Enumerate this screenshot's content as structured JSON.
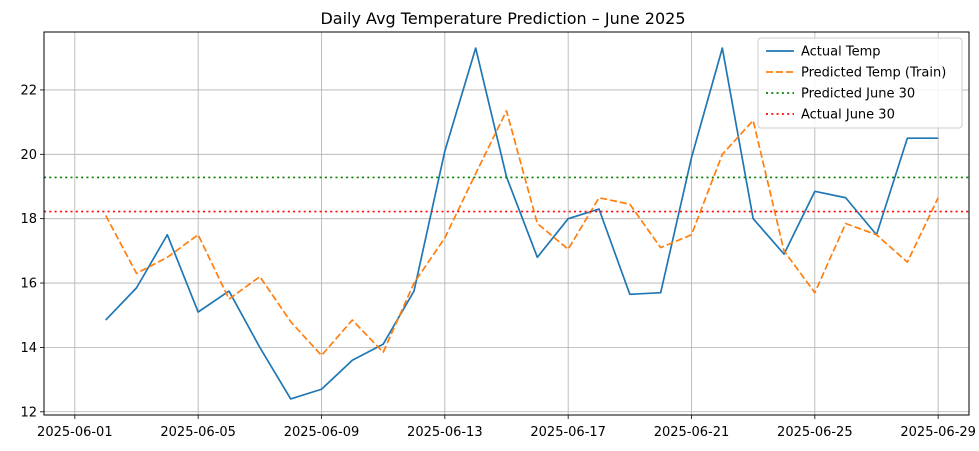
{
  "chart_data": {
    "type": "line",
    "title": "Daily Avg Temperature Prediction – June 2025",
    "xlabel": "",
    "ylabel": "",
    "xlim": [
      "2025-05-31",
      "2025-06-30"
    ],
    "ylim": [
      11.9,
      23.8
    ],
    "x_ticks": [
      "2025-06-01",
      "2025-06-05",
      "2025-06-09",
      "2025-06-13",
      "2025-06-17",
      "2025-06-21",
      "2025-06-25",
      "2025-06-29"
    ],
    "y_ticks": [
      12,
      14,
      16,
      18,
      20,
      22
    ],
    "grid": true,
    "legend_position": "top-right",
    "dates": [
      "2025-06-02",
      "2025-06-03",
      "2025-06-04",
      "2025-06-05",
      "2025-06-06",
      "2025-06-07",
      "2025-06-08",
      "2025-06-09",
      "2025-06-10",
      "2025-06-11",
      "2025-06-12",
      "2025-06-13",
      "2025-06-14",
      "2025-06-15",
      "2025-06-16",
      "2025-06-17",
      "2025-06-18",
      "2025-06-19",
      "2025-06-20",
      "2025-06-21",
      "2025-06-22",
      "2025-06-23",
      "2025-06-24",
      "2025-06-25",
      "2025-06-26",
      "2025-06-27",
      "2025-06-28",
      "2025-06-29"
    ],
    "series": [
      {
        "name": "Actual Temp",
        "color": "#1f77b4",
        "style": "solid",
        "values": [
          14.85,
          15.85,
          17.5,
          15.1,
          15.75,
          14.0,
          12.4,
          12.7,
          13.6,
          14.1,
          15.75,
          20.1,
          23.3,
          19.3,
          16.8,
          18.0,
          18.3,
          15.65,
          15.7,
          19.9,
          23.3,
          18.0,
          16.9,
          18.85,
          18.65,
          17.5,
          20.5,
          20.5
        ]
      },
      {
        "name": "Predicted Temp (Train)",
        "color": "#ff7f0e",
        "style": "dashed",
        "values": [
          18.1,
          16.3,
          16.8,
          17.5,
          15.5,
          16.2,
          14.8,
          13.75,
          14.85,
          13.85,
          16.0,
          17.4,
          19.4,
          21.35,
          17.85,
          17.05,
          18.65,
          18.45,
          17.1,
          17.5,
          20.0,
          21.05,
          17.0,
          15.7,
          17.85,
          17.5,
          16.65,
          18.65
        ]
      },
      {
        "name": "Predicted June 30",
        "color": "#008000",
        "style": "dotted",
        "hline": 19.28
      },
      {
        "name": "Actual June 30",
        "color": "#ff0000",
        "style": "dotted",
        "hline": 18.22
      }
    ]
  }
}
